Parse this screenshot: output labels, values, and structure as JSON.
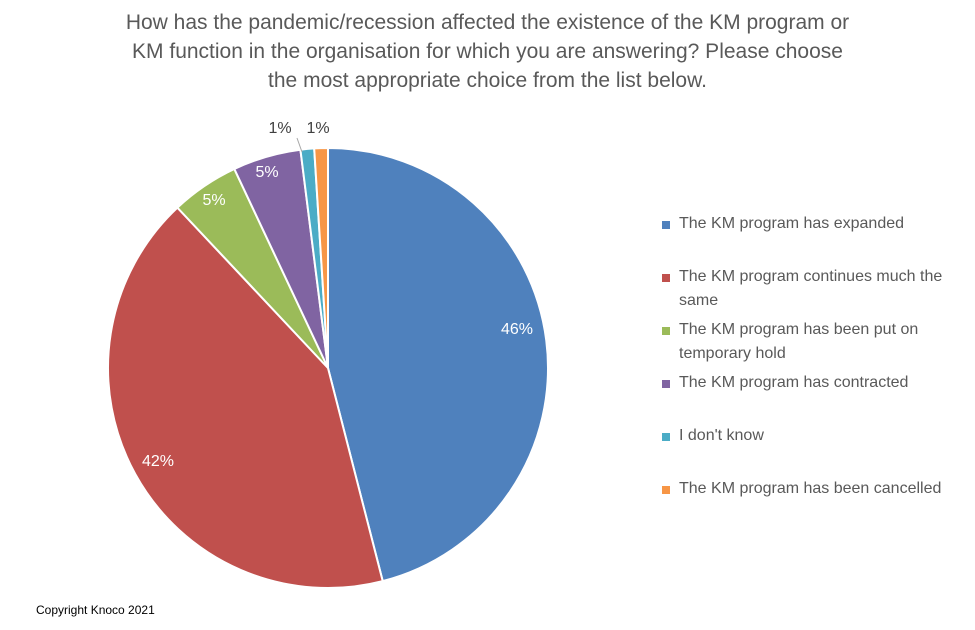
{
  "chart_data": {
    "type": "pie",
    "title": "How has the pandemic/recession affected the existence of the KM program or KM function in the organisation for which you are answering? Please choose the most appropriate choice from the list below.",
    "title_lines": [
      "How has the pandemic/recession affected the existence of the KM program or",
      "KM function in the organisation for which you are answering? Please choose",
      "the most appropriate choice from the list below."
    ],
    "legend_position": "right",
    "slices": [
      {
        "label": "The KM program has expanded",
        "label_lines": [
          "The KM program has expanded"
        ],
        "value": 46,
        "data_label": "46%",
        "color": "#4F81BD",
        "label_color": "#ffffff"
      },
      {
        "label": "The KM program continues much the same",
        "label_lines": [
          "The KM program continues much the",
          "same"
        ],
        "value": 42,
        "data_label": "42%",
        "color": "#C0504D",
        "label_color": "#ffffff"
      },
      {
        "label": "The KM program has been put on temporary hold",
        "label_lines": [
          "The KM program has been put on",
          "temporary hold"
        ],
        "value": 5,
        "data_label": "5%",
        "color": "#9BBB59",
        "label_color": "#ffffff"
      },
      {
        "label": "The KM program has contracted",
        "label_lines": [
          "The KM program has contracted"
        ],
        "value": 5,
        "data_label": "5%",
        "color": "#8064A2",
        "label_color": "#ffffff"
      },
      {
        "label": "I don't know",
        "label_lines": [
          "I don't know"
        ],
        "value": 1,
        "data_label": "1%",
        "color": "#4BACC6",
        "label_color": "#404040"
      },
      {
        "label": "The KM program has been cancelled",
        "label_lines": [
          "The KM program has been cancelled"
        ],
        "value": 1,
        "data_label": "1%",
        "color": "#F79646",
        "label_color": "#404040"
      }
    ]
  },
  "footer": {
    "copyright": "Copyright Knoco 2021"
  }
}
